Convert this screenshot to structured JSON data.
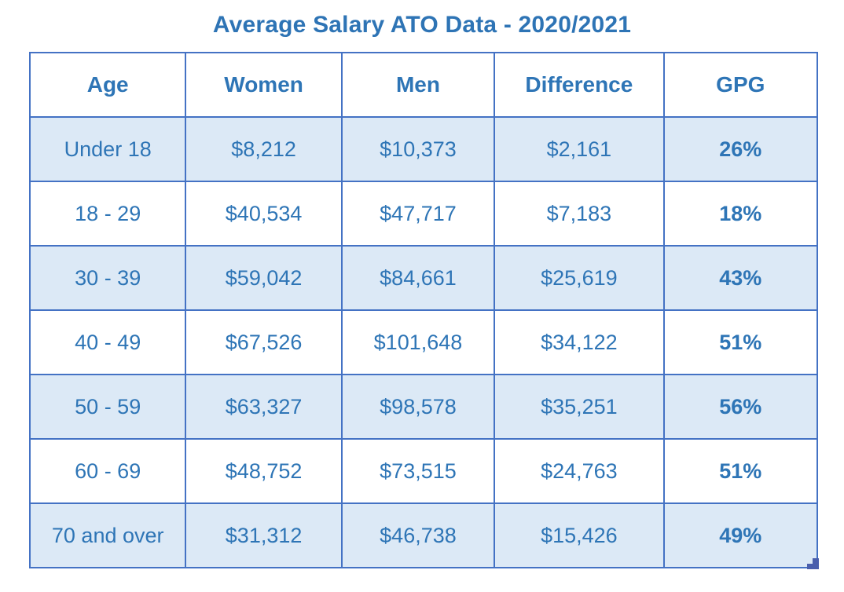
{
  "colors": {
    "title_blue": "#2e74b5",
    "text_blue": "#2e75b6",
    "border_blue": "#4472c4",
    "row_shade_blue": "#dce9f6",
    "highlight_red": "#f41212",
    "handle_blue": "#4a5fad"
  },
  "icons": {
    "resize_handle": "resize-handle-icon"
  },
  "chart_data": {
    "type": "table",
    "title": "Average Salary ATO Data - 2020/2021",
    "columns": [
      "Age",
      "Women",
      "Men",
      "Difference",
      "GPG"
    ],
    "rows": [
      {
        "cells": [
          "Under 18",
          "$8,212",
          "$10,373",
          "$2,161",
          "26%"
        ],
        "shaded": true,
        "gpg_highlight": false
      },
      {
        "cells": [
          "18 - 29",
          "$40,534",
          "$47,717",
          "$7,183",
          "18%"
        ],
        "shaded": false,
        "gpg_highlight": false
      },
      {
        "cells": [
          "30 - 39",
          "$59,042",
          "$84,661",
          "$25,619",
          "43%"
        ],
        "shaded": true,
        "gpg_highlight": false
      },
      {
        "cells": [
          "40 - 49",
          "$67,526",
          "$101,648",
          "$34,122",
          "51%"
        ],
        "shaded": false,
        "gpg_highlight": false
      },
      {
        "cells": [
          "50 - 59",
          "$63,327",
          "$98,578",
          "$35,251",
          "56%"
        ],
        "shaded": true,
        "gpg_highlight": true
      },
      {
        "cells": [
          "60 - 69",
          "$48,752",
          "$73,515",
          "$24,763",
          "51%"
        ],
        "shaded": false,
        "gpg_highlight": false
      },
      {
        "cells": [
          "70 and over",
          "$31,312",
          "$46,738",
          "$15,426",
          "49%"
        ],
        "shaded": true,
        "gpg_highlight": false
      }
    ],
    "layout": {
      "grid": true,
      "banded_rows": true,
      "title_position": "top-center"
    }
  }
}
